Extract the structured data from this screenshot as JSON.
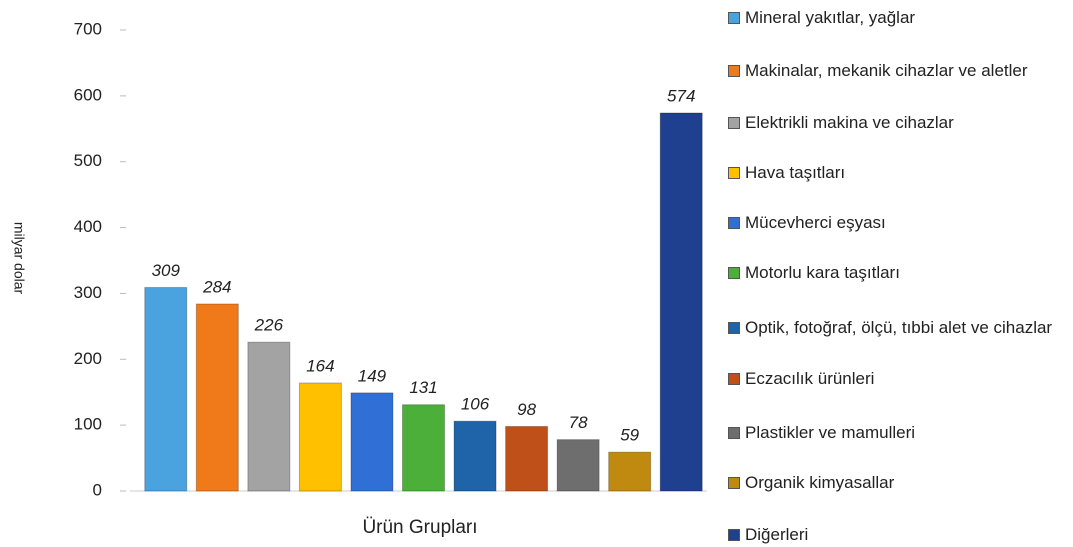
{
  "chart_data": {
    "type": "bar",
    "y_label": "milyar dolar",
    "x_label": "Ürün Grupları",
    "ylim": [
      0,
      700
    ],
    "yticks": [
      0,
      100,
      200,
      300,
      400,
      500,
      600,
      700
    ],
    "series": [
      {
        "name": "Mineral yakıtlar, yağlar",
        "color": "#4aa3df",
        "values": [
          309
        ]
      },
      {
        "name": "Makinalar, mekanik cihazlar ve aletler",
        "color": "#f07a1a",
        "values": [
          284
        ]
      },
      {
        "name": "Elektrikli makina ve cihazlar",
        "color": "#a3a3a3",
        "values": [
          226
        ]
      },
      {
        "name": "Hava taşıtları",
        "color": "#ffc000",
        "values": [
          164
        ]
      },
      {
        "name": "Mücevherci eşyası",
        "color": "#2f6fd6",
        "values": [
          149
        ]
      },
      {
        "name": "Motorlu kara taşıtları",
        "color": "#4caf3a",
        "values": [
          131
        ]
      },
      {
        "name": "Optik, fotoğraf, ölçü, tıbbi alet ve cihazlar",
        "color": "#1f63a8",
        "values": [
          106
        ]
      },
      {
        "name": "Eczacılık ürünleri",
        "color": "#c0501a",
        "values": [
          98
        ]
      },
      {
        "name": "Plastikler ve mamulleri",
        "color": "#6e6e6e",
        "values": [
          78
        ]
      },
      {
        "name": "Organik kimyasallar",
        "color": "#c08a10",
        "values": [
          59
        ]
      },
      {
        "name": "Diğerleri",
        "color": "#1f3f8f",
        "values": [
          574
        ]
      }
    ]
  }
}
